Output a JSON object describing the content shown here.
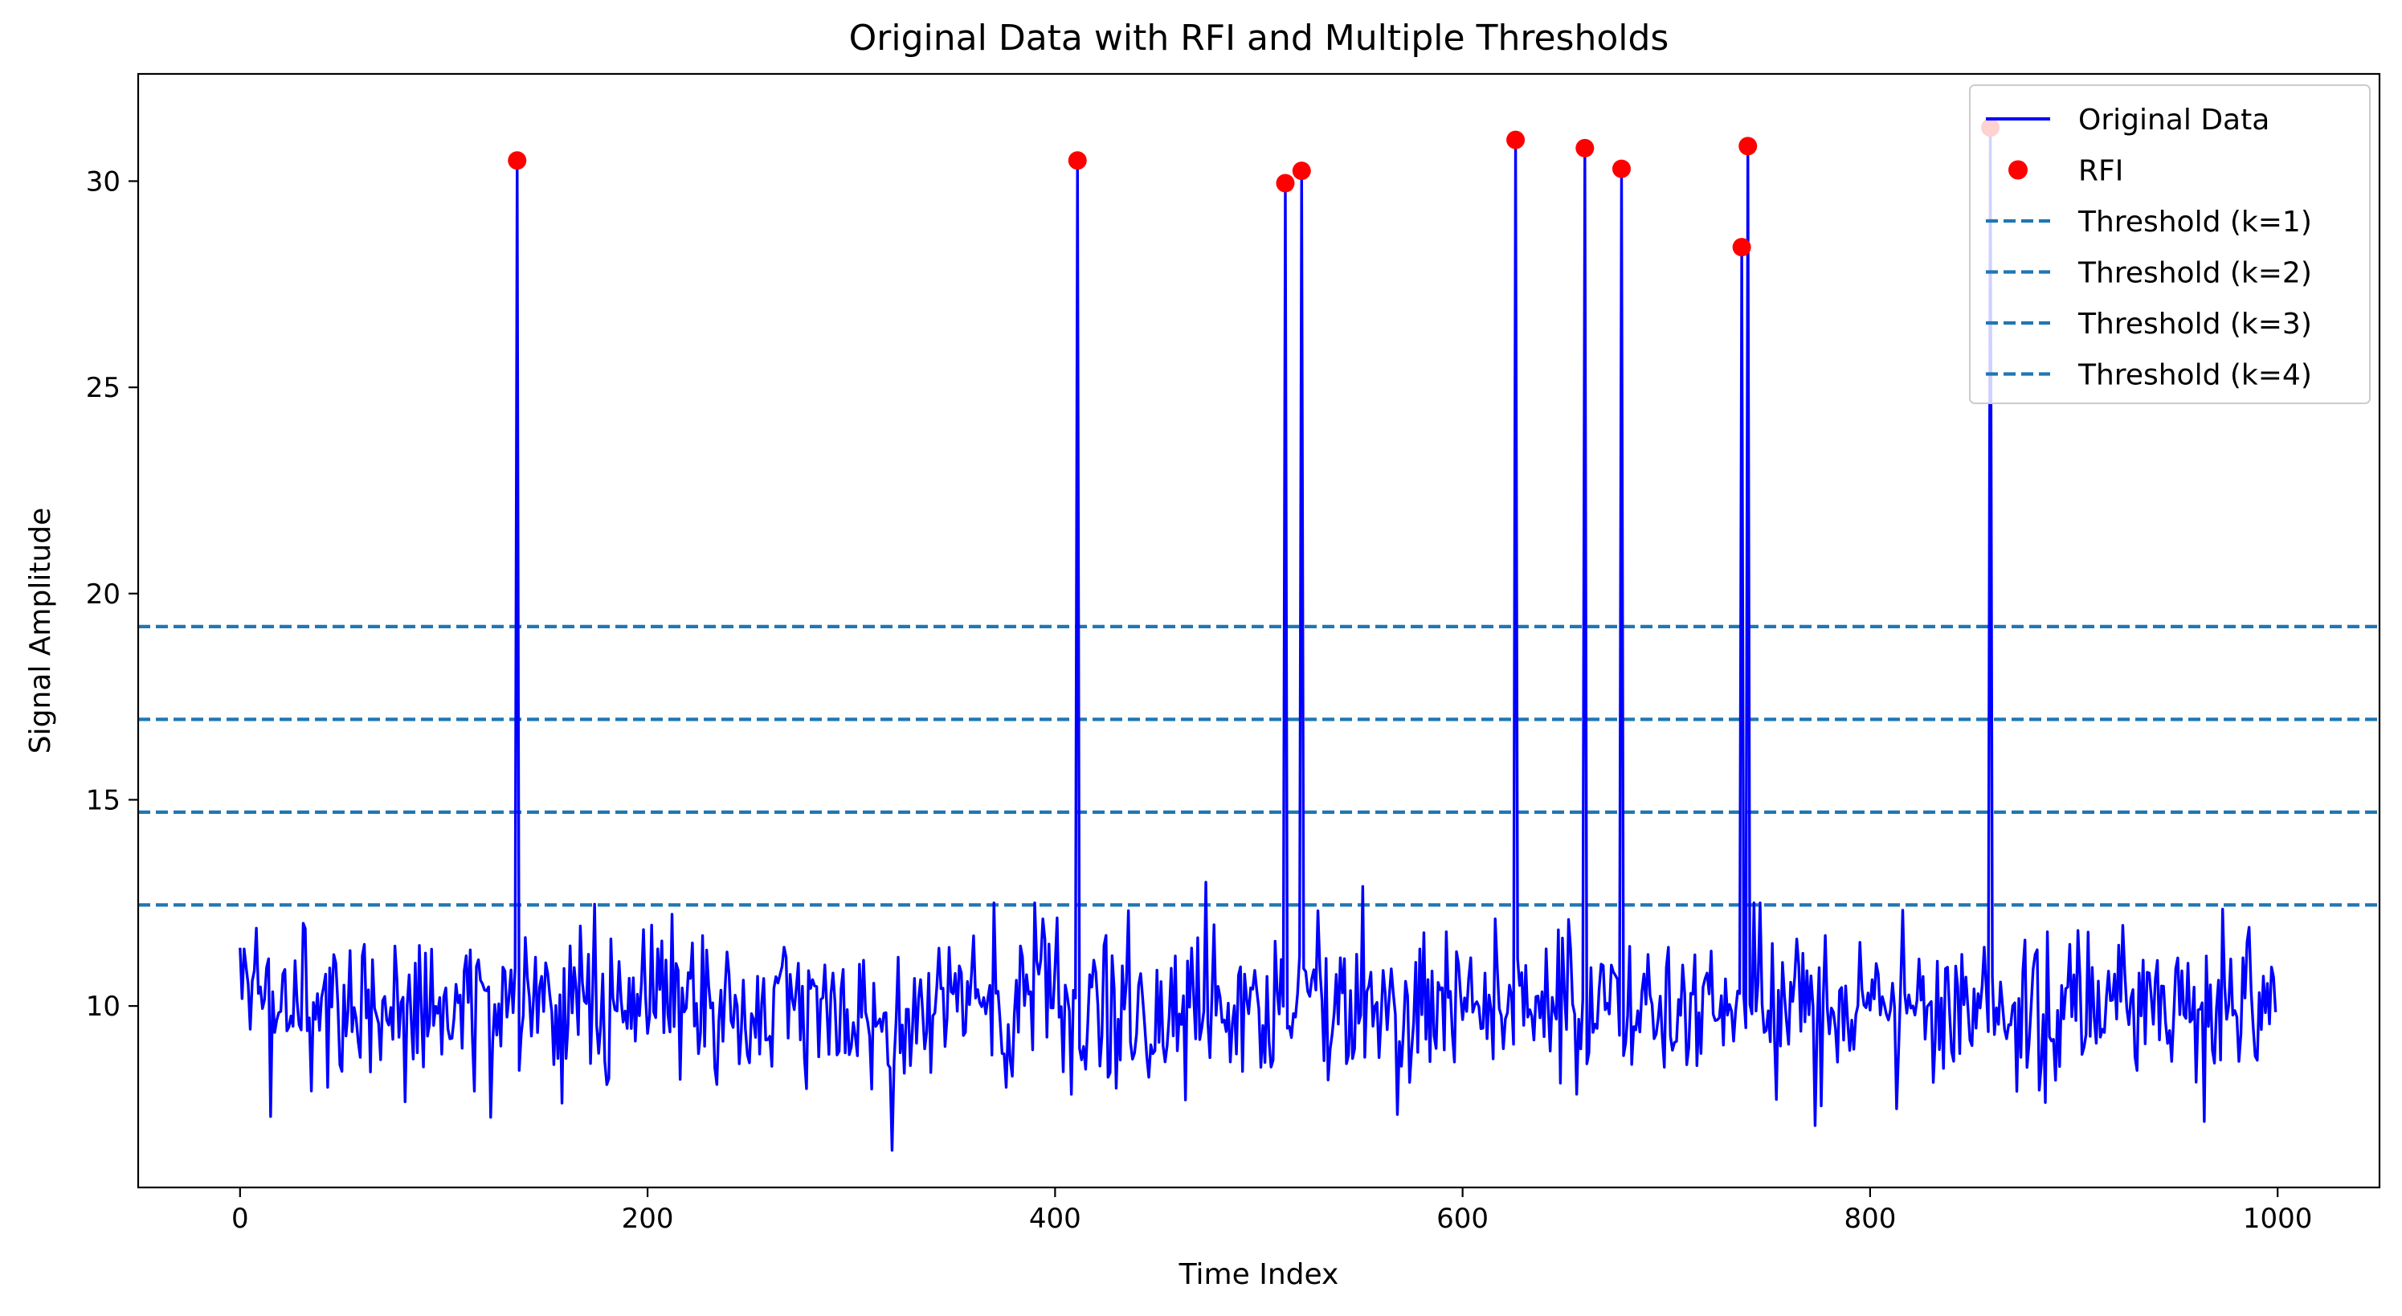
{
  "chart_data": {
    "type": "line",
    "title": "Original Data with RFI and Multiple Thresholds",
    "xlabel": "Time Index",
    "ylabel": "Signal Amplitude",
    "xlim": [
      -50,
      1050
    ],
    "ylim": [
      5.6,
      32.6
    ],
    "xticks": [
      0,
      200,
      400,
      600,
      800,
      1000
    ],
    "yticks": [
      10,
      15,
      20,
      25,
      30
    ],
    "grid": false,
    "legend_position": "top-right",
    "colors": {
      "data_line": "#0000ff",
      "rfi_points": "#ff0000",
      "threshold": "#1f77b4"
    },
    "series": [
      {
        "name": "Original Data",
        "kind": "line",
        "generator": {
          "length": 1000,
          "baseline": 10.0,
          "noise_std": 1.0,
          "seed": 42
        },
        "spikes": [
          {
            "x": 136,
            "y": 30.5
          },
          {
            "x": 411,
            "y": 30.5
          },
          {
            "x": 513,
            "y": 29.95
          },
          {
            "x": 521,
            "y": 30.25
          },
          {
            "x": 626,
            "y": 31.0
          },
          {
            "x": 660,
            "y": 30.8
          },
          {
            "x": 678,
            "y": 30.3
          },
          {
            "x": 737,
            "y": 28.4
          },
          {
            "x": 740,
            "y": 30.85
          },
          {
            "x": 859,
            "y": 31.3
          }
        ],
        "notable_points": [
          {
            "x": 320,
            "y": 6.5
          },
          {
            "x": 123,
            "y": 7.3
          },
          {
            "x": 773,
            "y": 7.1
          },
          {
            "x": 964,
            "y": 7.2
          },
          {
            "x": 474,
            "y": 13.0
          },
          {
            "x": 551,
            "y": 12.9
          }
        ]
      },
      {
        "name": "RFI",
        "kind": "scatter",
        "points": [
          {
            "x": 136,
            "y": 30.5
          },
          {
            "x": 411,
            "y": 30.5
          },
          {
            "x": 513,
            "y": 29.95
          },
          {
            "x": 521,
            "y": 30.25
          },
          {
            "x": 626,
            "y": 31.0
          },
          {
            "x": 660,
            "y": 30.8
          },
          {
            "x": 678,
            "y": 30.3
          },
          {
            "x": 737,
            "y": 28.4
          },
          {
            "x": 740,
            "y": 30.85
          },
          {
            "x": 859,
            "y": 31.3
          }
        ]
      },
      {
        "name": "Threshold (k=1)",
        "kind": "hline",
        "y": 12.45
      },
      {
        "name": "Threshold (k=2)",
        "kind": "hline",
        "y": 14.7
      },
      {
        "name": "Threshold (k=3)",
        "kind": "hline",
        "y": 16.95
      },
      {
        "name": "Threshold (k=4)",
        "kind": "hline",
        "y": 19.2
      }
    ],
    "legend": [
      {
        "label": "Original Data",
        "marker": "line"
      },
      {
        "label": "RFI",
        "marker": "dot"
      },
      {
        "label": "Threshold (k=1)",
        "marker": "dash"
      },
      {
        "label": "Threshold (k=2)",
        "marker": "dash"
      },
      {
        "label": "Threshold (k=3)",
        "marker": "dash"
      },
      {
        "label": "Threshold (k=4)",
        "marker": "dash"
      }
    ]
  }
}
